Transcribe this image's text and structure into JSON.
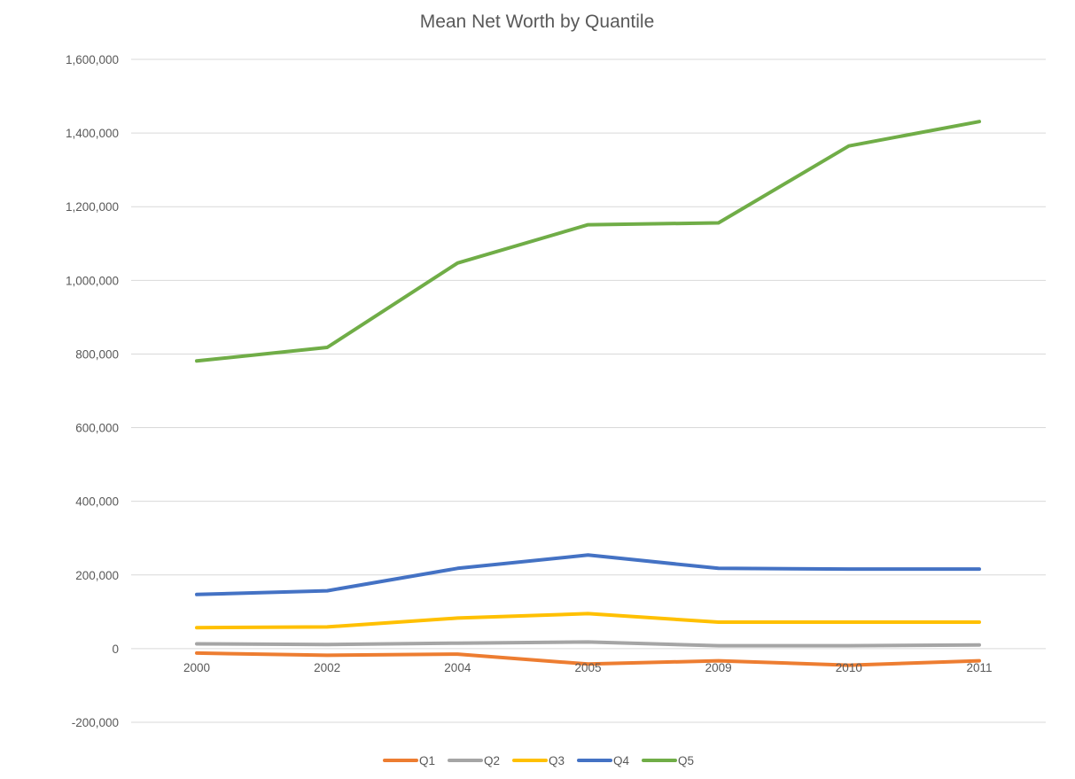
{
  "chart_data": {
    "type": "line",
    "title": "Mean Net Worth by Quantile",
    "xlabel": "",
    "ylabel": "",
    "categories": [
      "2000",
      "2002",
      "2004",
      "2005",
      "2009",
      "2010",
      "2011"
    ],
    "ylim": [
      -200000,
      1600000
    ],
    "yticks": [
      -200000,
      0,
      200000,
      400000,
      600000,
      800000,
      1000000,
      1200000,
      1400000,
      1600000
    ],
    "ytick_labels": [
      "-200,000",
      "0",
      "200,000",
      "400,000",
      "600,000",
      "800,000",
      "1,000,000",
      "1,200,000",
      "1,400,000",
      "1,600,000"
    ],
    "grid": true,
    "legend_position": "bottom",
    "series": [
      {
        "name": "Q1",
        "color": "#ED7D31",
        "values": [
          -12000,
          -18000,
          -15000,
          -42000,
          -33000,
          -45000,
          -33000
        ]
      },
      {
        "name": "Q2",
        "color": "#A5A5A5",
        "values": [
          13000,
          11000,
          15000,
          18000,
          8000,
          8000,
          10000
        ]
      },
      {
        "name": "Q3",
        "color": "#FFC000",
        "values": [
          57000,
          59000,
          83000,
          95000,
          72000,
          72000,
          72000
        ]
      },
      {
        "name": "Q4",
        "color": "#4472C4",
        "values": [
          147000,
          157000,
          218000,
          254000,
          218000,
          216000,
          216000
        ]
      },
      {
        "name": "Q5",
        "color": "#70AD47",
        "values": [
          781000,
          818000,
          1047000,
          1151000,
          1156000,
          1365000,
          1431000
        ]
      }
    ]
  }
}
